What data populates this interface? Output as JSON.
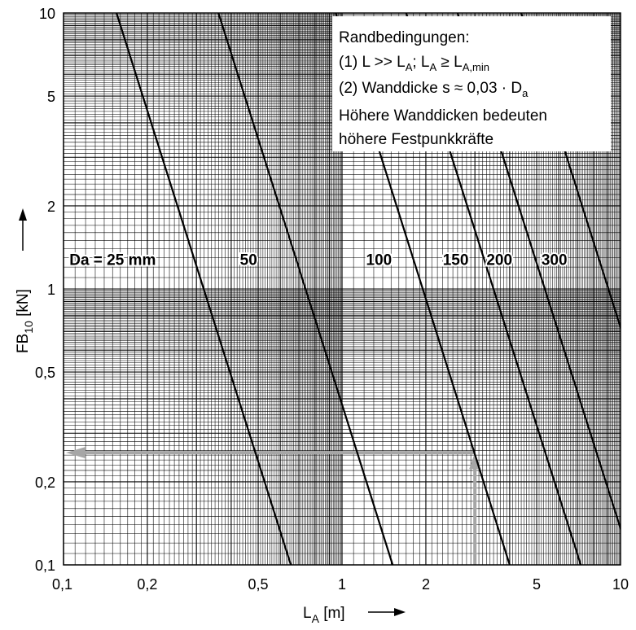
{
  "chart_data": {
    "type": "line",
    "x_scale": "log",
    "y_scale": "log",
    "xlim": [
      0.1,
      10
    ],
    "ylim": [
      0.1,
      10
    ],
    "grid": true,
    "x_ticks": [
      {
        "value": 0.1,
        "label": "0,1"
      },
      {
        "value": 0.2,
        "label": "0,2"
      },
      {
        "value": 0.5,
        "label": "0,5"
      },
      {
        "value": 1,
        "label": "1"
      },
      {
        "value": 2,
        "label": "2"
      },
      {
        "value": 5,
        "label": "5"
      },
      {
        "value": 10,
        "label": "10"
      }
    ],
    "y_ticks": [
      {
        "value": 0.1,
        "label": "0,1"
      },
      {
        "value": 0.2,
        "label": "0,2"
      },
      {
        "value": 0.5,
        "label": "0,5"
      },
      {
        "value": 1,
        "label": "1"
      },
      {
        "value": 2,
        "label": "2"
      },
      {
        "value": 5,
        "label": "5"
      },
      {
        "value": 10,
        "label": "10"
      }
    ],
    "xlabel": {
      "main": "L",
      "sub": "A",
      "rest": " [m]"
    },
    "ylabel": {
      "main": "FB",
      "sub": "10",
      "rest": " [kN]"
    },
    "series": [
      {
        "name": "Da = 25 mm",
        "points": [
          {
            "x": 0.155,
            "y": 10
          },
          {
            "x": 0.655,
            "y": 0.1
          }
        ]
      },
      {
        "name": "50",
        "points": [
          {
            "x": 0.36,
            "y": 10
          },
          {
            "x": 1.52,
            "y": 0.1
          }
        ]
      },
      {
        "name": "100",
        "points": [
          {
            "x": 0.95,
            "y": 10
          },
          {
            "x": 4.0,
            "y": 0.1
          }
        ]
      },
      {
        "name": "150",
        "points": [
          {
            "x": 1.7,
            "y": 10
          },
          {
            "x": 7.2,
            "y": 0.1
          }
        ]
      },
      {
        "name": "200",
        "points": [
          {
            "x": 2.6,
            "y": 10
          },
          {
            "x": 11.0,
            "y": 0.1
          }
        ]
      },
      {
        "name": "300",
        "points": [
          {
            "x": 4.4,
            "y": 10
          },
          {
            "x": 18.6,
            "y": 0.1
          }
        ]
      }
    ],
    "series_labels": [
      {
        "text": "Da = 25 mm",
        "x": 0.105,
        "y": 1.28
      },
      {
        "text": "50",
        "x": 0.43,
        "y": 1.28
      },
      {
        "text": "100",
        "x": 1.22,
        "y": 1.28
      },
      {
        "text": "150",
        "x": 2.3,
        "y": 1.28
      },
      {
        "text": "200",
        "x": 3.3,
        "y": 1.28
      },
      {
        "text": "300",
        "x": 5.2,
        "y": 1.28
      }
    ],
    "example_path": {
      "vertical": {
        "x": 3.0,
        "y_from": 0.1,
        "y_to": 0.255
      },
      "horizontal": {
        "y": 0.255,
        "x_from": 3.0,
        "x_to": 0.102
      }
    },
    "annotation": {
      "title": "Randbedingungen:",
      "line1": {
        "a": "(1) L >> L",
        "a_sub": "A",
        "b": ";    L",
        "b_sub": "A",
        "c": " ≥ L",
        "c_sub": "A,min"
      },
      "line2": {
        "a": "(2) Wanddicke s ≈ 0,03 · D",
        "a_sub": "a"
      },
      "line3": "Höhere Wanddicken bedeuten",
      "line4": "höhere Festpunkkräfte"
    }
  }
}
